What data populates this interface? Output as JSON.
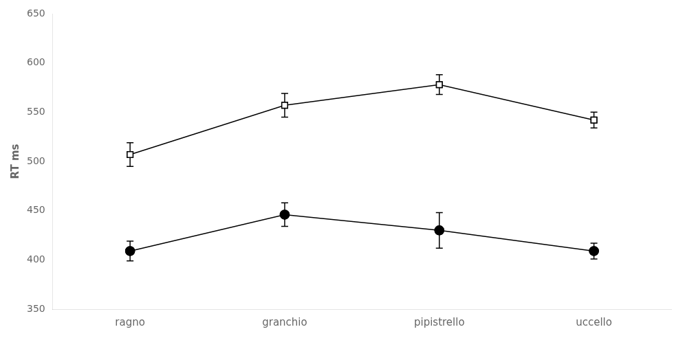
{
  "chart_data": {
    "type": "line",
    "categories": [
      "ragno",
      "granchio",
      "pipistrello",
      "uccello"
    ],
    "series": [
      {
        "color": "#000000",
        "marker": "open-square",
        "values": [
          507,
          557,
          578,
          542
        ],
        "errors": [
          12,
          12,
          10,
          8
        ]
      },
      {
        "color": "#000000",
        "marker": "circle",
        "values": [
          409,
          446,
          430,
          409
        ],
        "errors": [
          10,
          12,
          18,
          8
        ]
      }
    ],
    "y_label": "RT ms",
    "ylim": [
      350,
      650
    ],
    "yticks": [
      350,
      400,
      450,
      500,
      550,
      600,
      650
    ],
    "grid": false
  }
}
